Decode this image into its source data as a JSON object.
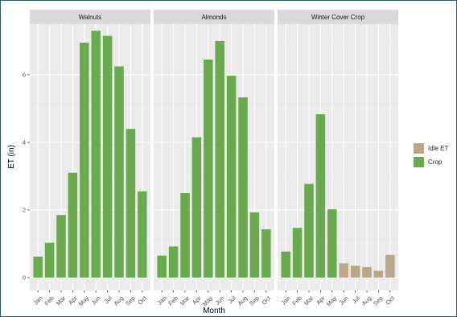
{
  "chart_data": {
    "type": "bar",
    "xlabel": "Month",
    "ylabel": "ET (in)",
    "ylim": [
      0,
      7.45
    ],
    "yticks": [
      0,
      2,
      4,
      6
    ],
    "grid": true,
    "legend_position": "right",
    "legend": [
      {
        "key": "idle",
        "label": "Idle ET",
        "color": "#b9a78c"
      },
      {
        "key": "crop",
        "label": "Crop",
        "color": "#6aaa4f"
      }
    ],
    "categories": [
      "Jan",
      "Feb",
      "Mar",
      "Apr",
      "May",
      "Jun",
      "Jul",
      "Aug",
      "Sep",
      "Oct"
    ],
    "panels": [
      {
        "title": "Walnuts",
        "values": [
          0.62,
          1.03,
          1.85,
          3.1,
          6.95,
          7.3,
          7.15,
          6.25,
          4.4,
          2.55
        ],
        "series": [
          "crop",
          "crop",
          "crop",
          "crop",
          "crop",
          "crop",
          "crop",
          "crop",
          "crop",
          "crop"
        ]
      },
      {
        "title": "Almonds",
        "values": [
          0.65,
          0.92,
          2.5,
          4.15,
          6.45,
          7.0,
          5.97,
          5.33,
          1.93,
          1.43
        ],
        "series": [
          "crop",
          "crop",
          "crop",
          "crop",
          "crop",
          "crop",
          "crop",
          "crop",
          "crop",
          "crop"
        ]
      },
      {
        "title": "Winter Cover Crop",
        "values": [
          0.77,
          1.47,
          2.77,
          4.83,
          2.02,
          0.42,
          0.35,
          0.31,
          0.2,
          0.67
        ],
        "series": [
          "crop",
          "crop",
          "crop",
          "crop",
          "crop",
          "idle",
          "idle",
          "idle",
          "idle",
          "idle"
        ]
      }
    ]
  }
}
